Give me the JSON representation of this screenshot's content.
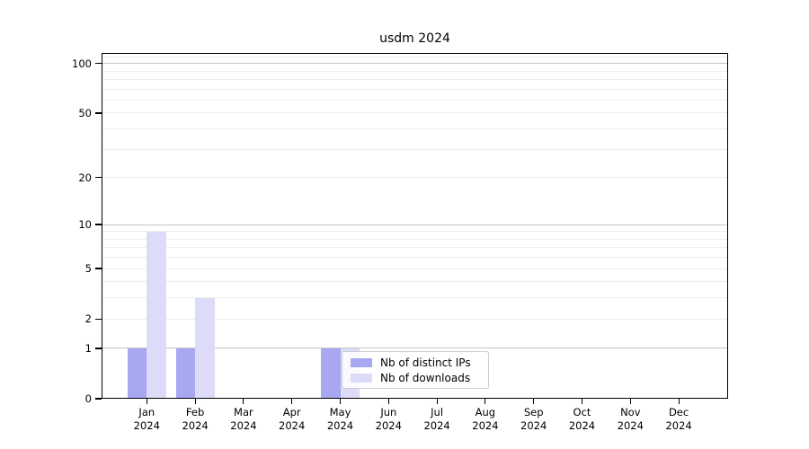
{
  "chart_data": {
    "type": "bar",
    "title": "usdm 2024",
    "categories": [
      "Jan",
      "Feb",
      "Mar",
      "Apr",
      "May",
      "Jun",
      "Jul",
      "Aug",
      "Sep",
      "Oct",
      "Nov",
      "Dec"
    ],
    "year_label": "2024",
    "series": [
      {
        "name": "Nb of distinct IPs",
        "color": "#a7a7f2",
        "values": [
          1,
          1,
          0,
          0,
          1,
          0,
          0,
          0,
          0,
          0,
          0,
          0
        ]
      },
      {
        "name": "Nb of downloads",
        "color": "#dcdcf9",
        "values": [
          9,
          3,
          0,
          0,
          1,
          0,
          0,
          0,
          0,
          0,
          0,
          0
        ]
      }
    ],
    "yscale": "log1p",
    "yticks": [
      0,
      1,
      2,
      5,
      10,
      20,
      50,
      100
    ],
    "ylim": [
      0,
      116
    ],
    "major_gridlines": [
      1,
      10,
      100
    ],
    "minor_gridlines": [
      2,
      3,
      4,
      5,
      6,
      7,
      8,
      9,
      20,
      30,
      40,
      50,
      60,
      70,
      80,
      90,
      110
    ],
    "xlabel": "",
    "ylabel": "",
    "grid": true,
    "legend_position": "lower center, inside plot"
  }
}
